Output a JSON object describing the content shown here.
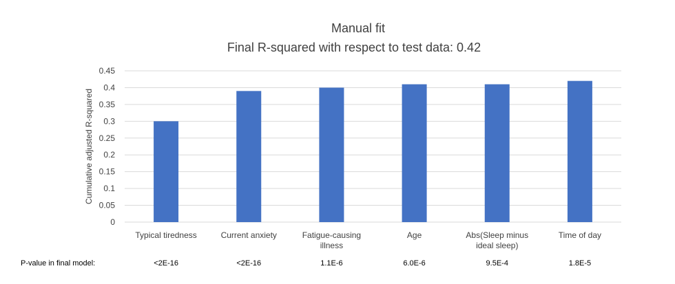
{
  "colors": {
    "bar": "#4472C4",
    "grid": "#D9D9D9",
    "text": "#404040"
  },
  "chart_data": {
    "type": "bar",
    "title": "Manual fit",
    "subtitle": "Final R-squared with respect to test data: 0.42",
    "ylabel": "Cumulative adjusted R-squared",
    "xlabel": "",
    "ylim": [
      0,
      0.45
    ],
    "yticks": [
      "0",
      "0.05",
      "0.1",
      "0.15",
      "0.2",
      "0.25",
      "0.3",
      "0.35",
      "0.4",
      "0.45"
    ],
    "grid": true,
    "legend": "none",
    "categories": [
      [
        "Typical tiredness"
      ],
      [
        "Current anxiety"
      ],
      [
        "Fatigue-causing",
        "illness"
      ],
      [
        "Age"
      ],
      [
        "Abs(Sleep minus",
        "ideal sleep)"
      ],
      [
        "Time of day"
      ]
    ],
    "values": [
      0.3,
      0.39,
      0.4,
      0.41,
      0.41,
      0.42
    ]
  },
  "pvalue_row": {
    "label": "P-value in final model:",
    "values": [
      "<2E-16",
      "<2E-16",
      "1.1E-6",
      "6.0E-6",
      "9.5E-4",
      "1.8E-5"
    ]
  }
}
